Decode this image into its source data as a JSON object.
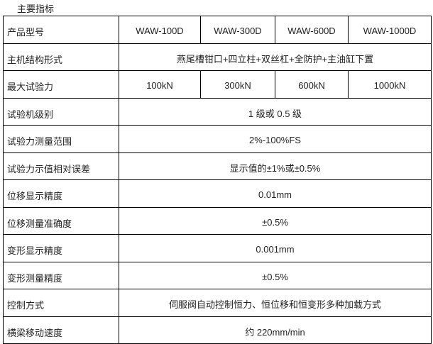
{
  "title": "主要指标",
  "models": [
    "WAW-100D",
    "WAW-300D",
    "WAW-600D",
    "WAW-1000D"
  ],
  "rows": [
    {
      "label": "产品型号"
    },
    {
      "label": "主机结构形式",
      "value": "燕尾槽钳口+四立柱+双丝杠+全防护+主油缸下置"
    },
    {
      "label": "最大试验力",
      "values": [
        "100kN",
        "300kN",
        "600kN",
        "1000kN"
      ]
    },
    {
      "label": "试验机级别",
      "value": "1 级或 0.5 级"
    },
    {
      "label": "试验力测量范围",
      "value": "2%-100%FS"
    },
    {
      "label": "试验力示值相对误差",
      "value": "显示值的±1%或±0.5%"
    },
    {
      "label": "位移显示精度",
      "value": "0.01mm"
    },
    {
      "label": "位移测量准确度",
      "value": "±0.5%"
    },
    {
      "label": "变形显示精度",
      "value": "0.001mm"
    },
    {
      "label": "变形测量精度",
      "value": "±0.5%"
    },
    {
      "label": "控制方式",
      "value": "伺服阀自动控制恒力、恒位移和恒变形多种加载方式"
    },
    {
      "label": "横梁移动速度",
      "value": "约 220mm/min"
    }
  ]
}
